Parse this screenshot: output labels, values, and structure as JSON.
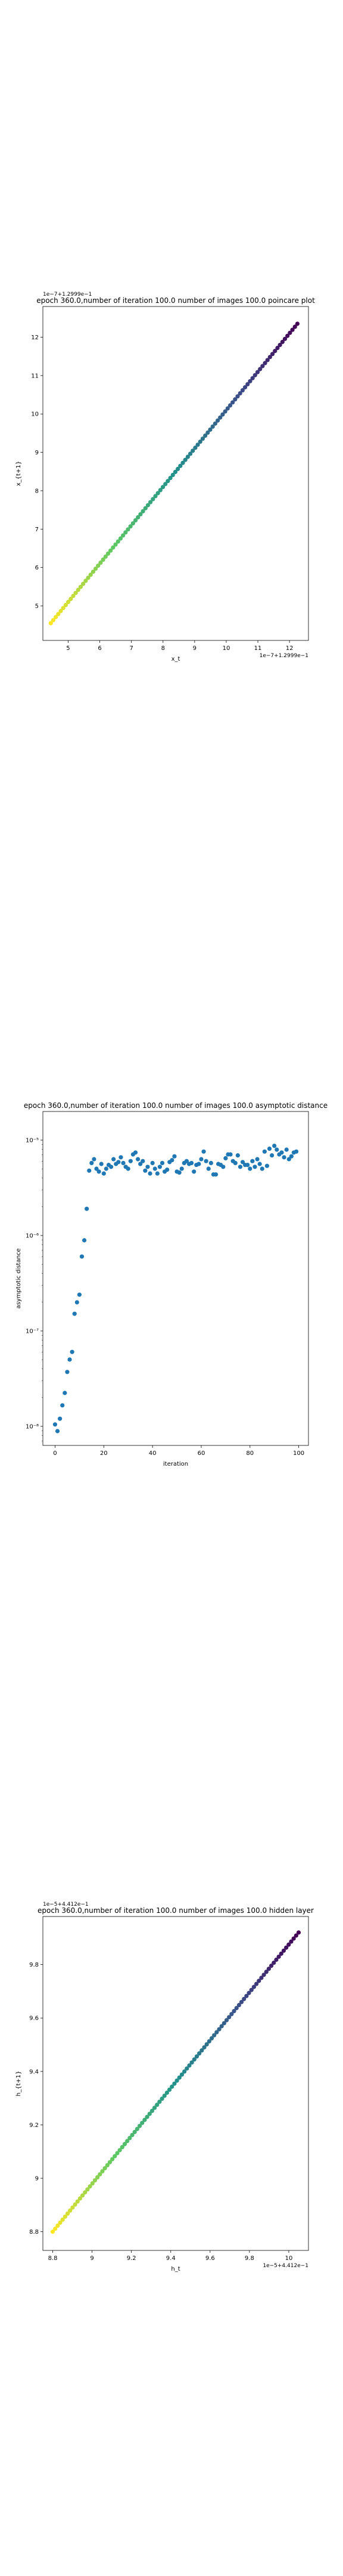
{
  "chart_data": [
    {
      "type": "scatter",
      "title": "epoch 360.0,number of iteration 100.0  number of images 100.0 poincare plot",
      "xlabel": "x_t",
      "ylabel": "x_{t+1}",
      "offset_text_x": "1e−7+1.2999e−1",
      "offset_text_y": "1e−7+1.2999e−1",
      "xlim": [
        4.2,
        12.6
      ],
      "ylim": [
        4.1,
        12.8
      ],
      "xticks": [
        5,
        6,
        7,
        8,
        9,
        10,
        11,
        12
      ],
      "yticks": [
        5,
        6,
        7,
        8,
        9,
        10,
        11,
        12
      ],
      "colormap": [
        "#fde725",
        "#5ec962",
        "#21918c",
        "#3b528b",
        "#440154"
      ],
      "series": [
        {
          "x_start": 4.45,
          "x_end": 12.25,
          "y_start": 4.55,
          "y_end": 12.35,
          "n_points": 100
        }
      ]
    },
    {
      "type": "scatter",
      "title": "epoch 360.0,number of iteration 100.0  number of images 100.0 asymptotic distance",
      "xlabel": "iteration",
      "ylabel": "asymptotic distance",
      "yscale": "log",
      "xlim": [
        -5,
        104
      ],
      "ylim_log10": [
        -8.2,
        -4.7
      ],
      "xticks": [
        0,
        20,
        40,
        60,
        80,
        100
      ],
      "yticks": [
        "10⁻⁸",
        "10⁻⁷",
        "10⁻⁶",
        "10⁻⁵"
      ],
      "color": "#1f77b4",
      "series": [
        {
          "x": [
            0,
            1,
            2,
            3,
            4,
            5,
            6,
            7,
            8,
            9,
            10,
            11,
            12,
            13,
            14,
            15,
            16,
            17,
            18,
            19,
            20,
            21,
            22,
            23,
            24,
            25,
            26,
            27,
            28,
            29,
            30,
            31,
            32,
            33,
            34,
            35,
            36,
            37,
            38,
            39,
            40,
            41,
            42,
            43,
            44,
            45,
            46,
            47,
            48,
            49,
            50,
            51,
            52,
            53,
            54,
            55,
            56,
            57,
            58,
            59,
            60,
            61,
            62,
            63,
            64,
            65,
            66,
            67,
            68,
            69,
            70,
            71,
            72,
            73,
            74,
            75,
            76,
            77,
            78,
            79,
            80,
            81,
            82,
            83,
            84,
            85,
            86,
            87,
            88,
            89,
            90,
            91,
            92,
            93,
            94,
            95,
            96,
            97,
            98,
            99
          ],
          "log10_y": [
            -7.98,
            -8.05,
            -7.92,
            -7.78,
            -7.65,
            -7.43,
            -7.3,
            -7.22,
            -6.82,
            -6.7,
            -6.62,
            -6.22,
            -6.05,
            -5.72,
            -5.32,
            -5.24,
            -5.2,
            -5.3,
            -5.33,
            -5.25,
            -5.35,
            -5.3,
            -5.26,
            -5.28,
            -5.2,
            -5.25,
            -5.23,
            -5.18,
            -5.24,
            -5.28,
            -5.3,
            -5.22,
            -5.15,
            -5.13,
            -5.2,
            -5.25,
            -5.22,
            -5.32,
            -5.28,
            -5.35,
            -5.24,
            -5.3,
            -5.35,
            -5.28,
            -5.24,
            -5.33,
            -5.31,
            -5.23,
            -5.21,
            -5.17,
            -5.33,
            -5.34,
            -5.3,
            -5.24,
            -5.22,
            -5.25,
            -5.24,
            -5.33,
            -5.26,
            -5.25,
            -5.2,
            -5.12,
            -5.22,
            -5.3,
            -5.24,
            -5.36,
            -5.36,
            -5.25,
            -5.26,
            -5.28,
            -5.19,
            -5.15,
            -5.15,
            -5.22,
            -5.24,
            -5.16,
            -5.28,
            -5.23,
            -5.26,
            -5.26,
            -5.3,
            -5.22,
            -5.28,
            -5.2,
            -5.25,
            -5.3,
            -5.12,
            -5.27,
            -5.09,
            -5.16,
            -5.06,
            -5.1,
            -5.15,
            -5.13,
            -5.18,
            -5.1,
            -5.2,
            -5.17,
            -5.13,
            -5.12
          ]
        }
      ]
    },
    {
      "type": "scatter",
      "title": "epoch 360.0,number of iteration 100.0  number of images 100.0 hidden layer",
      "xlabel": "h_t",
      "ylabel": "h_{t+1}",
      "offset_text_x": "1e−5+4.412e−1",
      "offset_text_y": "1e−5+4.412e−1",
      "xlim": [
        8.75,
        10.1
      ],
      "ylim": [
        8.73,
        9.98
      ],
      "xticks": [
        8.8,
        9.0,
        9.2,
        9.4,
        9.6,
        9.8,
        10.0
      ],
      "yticks": [
        8.8,
        9.0,
        9.2,
        9.4,
        9.6,
        9.8
      ],
      "colormap": [
        "#fde725",
        "#5ec962",
        "#21918c",
        "#3b528b",
        "#440154"
      ],
      "series": [
        {
          "x_start": 8.8,
          "x_end": 10.05,
          "y_start": 8.8,
          "y_end": 9.92,
          "n_points": 100
        }
      ]
    }
  ]
}
